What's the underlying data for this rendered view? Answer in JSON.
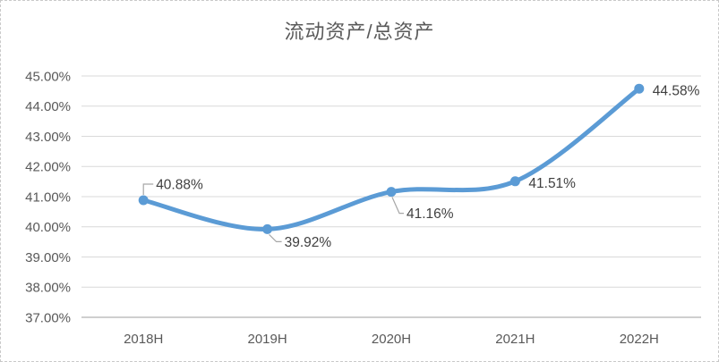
{
  "chart_data": {
    "type": "line",
    "title": "流动资产/总资产",
    "categories": [
      "2018H",
      "2019H",
      "2020H",
      "2021H",
      "2022H"
    ],
    "series": [
      {
        "name": "流动资产/总资产",
        "values": [
          40.88,
          39.92,
          41.16,
          41.51,
          44.58
        ]
      }
    ],
    "data_labels": [
      {
        "text": "40.88%",
        "placement": "callout-up"
      },
      {
        "text": "39.92%",
        "placement": "callout-down-right"
      },
      {
        "text": "41.16%",
        "placement": "callout-down"
      },
      {
        "text": "41.51%",
        "placement": "right"
      },
      {
        "text": "44.58%",
        "placement": "right"
      }
    ],
    "y_axis": {
      "min": 37,
      "max": 45,
      "step": 1,
      "tick_labels": [
        "37.00%",
        "38.00%",
        "39.00%",
        "40.00%",
        "41.00%",
        "42.00%",
        "43.00%",
        "44.00%",
        "45.00%"
      ]
    },
    "x_axis": {
      "tick_labels": [
        "2018H",
        "2019H",
        "2020H",
        "2021H",
        "2022H"
      ]
    },
    "grid": true,
    "legend": "none",
    "smooth": true,
    "colors": {
      "line": "#5b9bd5",
      "marker": "#5b9bd5",
      "gridline": "#d9d9d9",
      "axis_line": "#bfbfbf",
      "axis_text": "#595959",
      "title_text": "#595959",
      "data_label_text": "#404040",
      "leader_line": "#a6a6a6",
      "background": "#ffffff",
      "frame_border": "#c9c9c9"
    }
  }
}
